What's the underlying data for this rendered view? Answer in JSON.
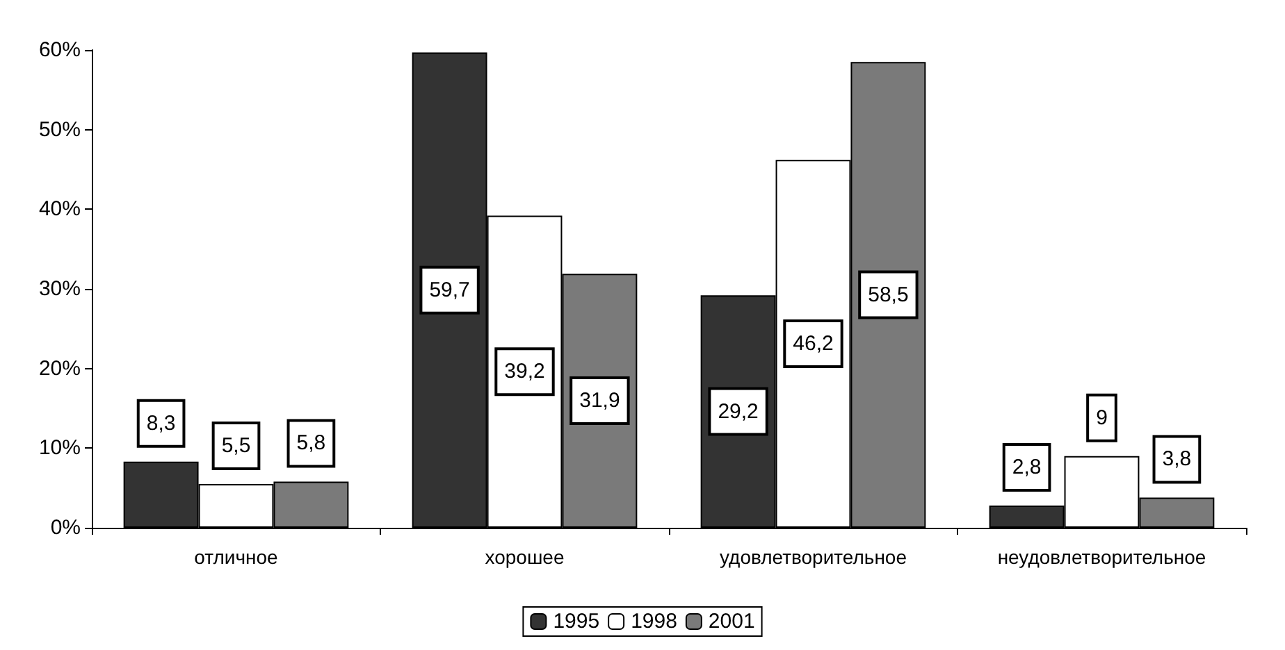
{
  "chart_data": {
    "type": "bar",
    "categories": [
      "отличное",
      "хорошее",
      "удовлетворительное",
      "неудовлетворительное"
    ],
    "series": [
      {
        "name": "1995",
        "color": "#333333",
        "values": [
          8.3,
          59.7,
          29.2,
          2.8
        ],
        "value_labels": [
          "8,3",
          "59,7",
          "29,2",
          "2,8"
        ]
      },
      {
        "name": "1998",
        "color": "#ffffff",
        "values": [
          5.5,
          39.2,
          46.2,
          9
        ],
        "value_labels": [
          "5,5",
          "39,2",
          "46,2",
          "9"
        ]
      },
      {
        "name": "2001",
        "color": "#7a7a7a",
        "values": [
          5.8,
          31.9,
          58.5,
          3.8
        ],
        "value_labels": [
          "5,8",
          "31,9",
          "58,5",
          "3,8"
        ]
      }
    ],
    "ylim": [
      0,
      60
    ],
    "yticks": [
      {
        "value": 0,
        "label": "0%"
      },
      {
        "value": 10,
        "label": "10%"
      },
      {
        "value": 20,
        "label": "20%"
      },
      {
        "value": 30,
        "label": "30%"
      },
      {
        "value": 40,
        "label": "40%"
      },
      {
        "value": 50,
        "label": "50%"
      },
      {
        "value": 60,
        "label": "60%"
      }
    ],
    "grid": false,
    "legend": "bottom"
  }
}
